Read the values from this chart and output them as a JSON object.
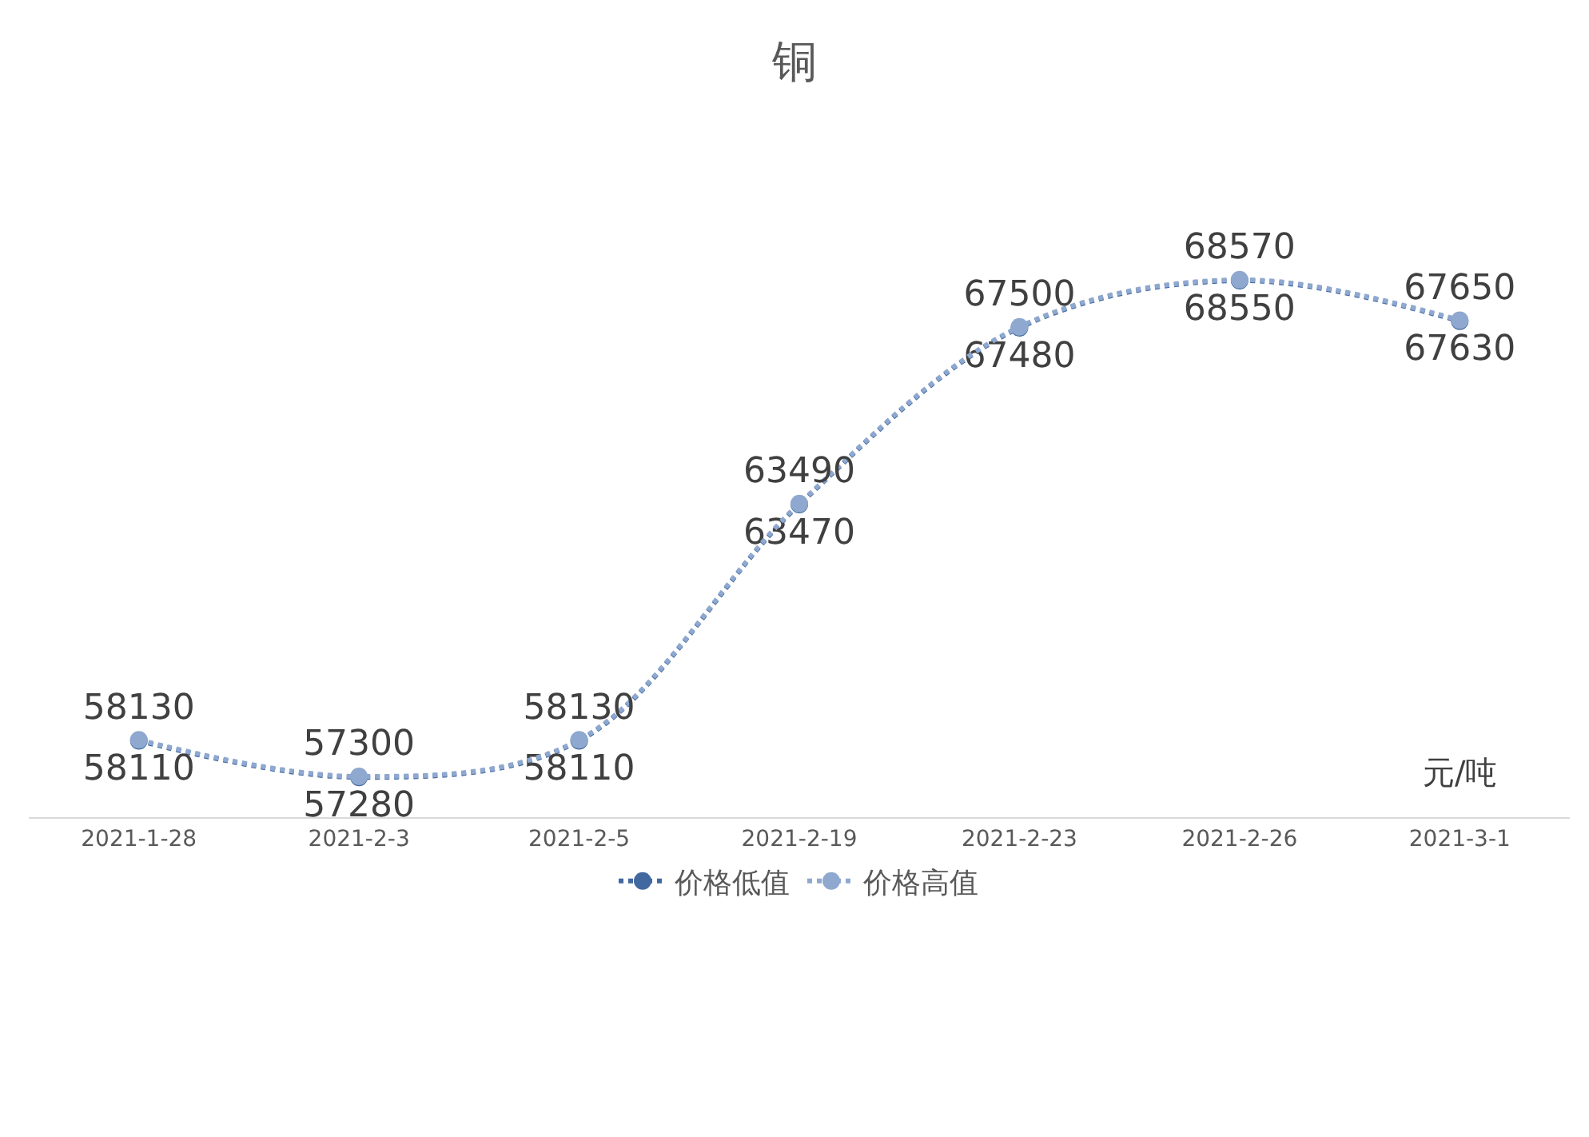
{
  "chart_data": {
    "type": "line",
    "title": "铜",
    "categories": [
      "2021-1-28",
      "2021-2-3",
      "2021-2-5",
      "2021-2-19",
      "2021-2-23",
      "2021-2-26",
      "2021-3-1"
    ],
    "series": [
      {
        "name": "价格低值",
        "color": "#41689f",
        "values": [
          58110,
          57280,
          58110,
          63470,
          67480,
          68550,
          67630
        ]
      },
      {
        "name": "价格高值",
        "color": "#8fa8cf",
        "values": [
          58130,
          57300,
          58130,
          63490,
          67500,
          68570,
          67650
        ]
      }
    ],
    "data_labels": true,
    "marker": "circle",
    "line_style": "dotted",
    "legend": "bottom",
    "annotations": [
      "元/吨"
    ]
  }
}
